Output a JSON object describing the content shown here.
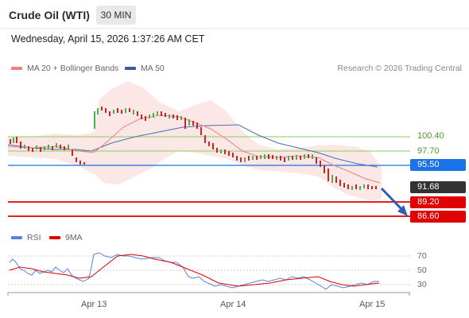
{
  "header": {
    "instrument": "Crude Oil (WTI)",
    "timeframe": "30 MIN",
    "datetime": "Wednesday, April 15, 2026 1:37:26 AM CET"
  },
  "legend": {
    "ma20_label": "MA 20 + Bollinger Bands",
    "ma50_label": "MA 50",
    "credit": "Research © 2026 Trading Central"
  },
  "levels": {
    "r2": "100.40",
    "r1": "97.70",
    "pivot": "95.50",
    "last": "91.68",
    "s1": "89.20",
    "s2": "86.60"
  },
  "rsi_panel": {
    "rsi_label": "RSI",
    "ma_label": "9MA",
    "ticks": [
      "70",
      "50",
      "30"
    ]
  },
  "x_axis": {
    "labels": [
      "Apr 13",
      "Apr 14",
      "Apr 15"
    ]
  },
  "colors": {
    "ma20": "#f08080",
    "ma50": "#4a6fb5",
    "pivot": "#1a73e8",
    "support": "#e00000",
    "resistance": "#8ccf5a",
    "last_price_box": "#333333",
    "bull_candle": "#4caf50",
    "bear_candle": "#c62828",
    "rsi": "#5a82e0",
    "rsi_ma": "#e00000"
  }
}
